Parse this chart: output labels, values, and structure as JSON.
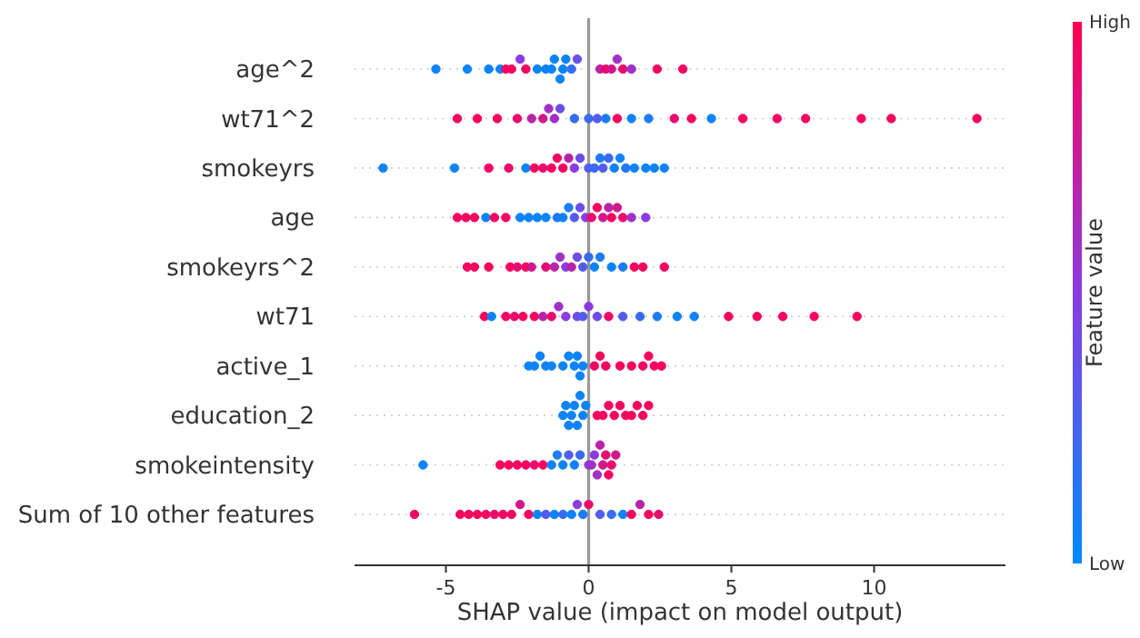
{
  "chart_data": {
    "type": "scatter",
    "orientation": "horizontal",
    "xlabel": "SHAP value (impact on model output)",
    "clabel": "Feature value",
    "xlim": [
      -8.2,
      14.6
    ],
    "xticks": [
      -5,
      0,
      5,
      10
    ],
    "clim": [
      0,
      1
    ],
    "cticks": [
      {
        "value": 0,
        "label": "Low"
      },
      {
        "value": 1,
        "label": "High"
      }
    ],
    "grid": "y",
    "marker": "circle",
    "ref_lines": [
      {
        "axis": "x",
        "value": 0,
        "color": "#999999"
      }
    ],
    "categories": [
      "age^2",
      "wt71^2",
      "smokeyrs",
      "age",
      "smokeyrs^2",
      "wt71",
      "active_1",
      "education_2",
      "smokeintensity",
      "Sum of 10 other features"
    ],
    "series": [
      {
        "values": [
          -5.35,
          -4.6,
          -7.2,
          -4.6,
          -4.25,
          -3.65,
          -2.1,
          -0.9,
          -5.8,
          -6.1
        ],
        "cvalues": [
          0.05,
          0.95,
          0.05,
          0.95,
          0.95,
          0.95,
          0.05,
          0.05,
          0.05,
          0.95
        ],
        "colors": [
          "#0e83f8",
          "#f30660",
          "#0e83f8",
          "#f30660",
          "#f30660",
          "#f30660",
          "#0e83f8",
          "#0e83f8",
          "#0e83f8",
          "#f30660"
        ]
      },
      {
        "values": [
          -4.25,
          -3.9,
          -4.7,
          -4.3,
          -4.0,
          -3.4,
          -1.9,
          -0.8,
          -3.1,
          -4.5
        ],
        "cvalues": [
          0.05,
          0.95,
          0.05,
          0.95,
          0.95,
          0.05,
          0.05,
          0.05,
          0.95,
          0.95
        ],
        "colors": [
          "#0e83f8",
          "#f30660",
          "#0e83f8",
          "#f30660",
          "#f30660",
          "#0e83f8",
          "#0e83f8",
          "#0e83f8",
          "#f30660",
          "#f30660"
        ]
      },
      {
        "values": [
          -3.5,
          -3.2,
          -3.5,
          -4.0,
          -3.5,
          -2.9,
          -1.7,
          -0.7,
          -2.8,
          -4.2
        ],
        "cvalues": [
          0.05,
          0.95,
          0.95,
          0.95,
          0.95,
          0.95,
          0.05,
          0.05,
          0.95,
          0.95
        ],
        "colors": [
          "#0e83f8",
          "#f30660",
          "#f30660",
          "#f30660",
          "#f30660",
          "#f30660",
          "#0e83f8",
          "#0e83f8",
          "#f30660",
          "#f30660"
        ]
      },
      {
        "values": [
          -3.1,
          -2.5,
          -2.8,
          -3.6,
          -2.75,
          -2.6,
          -1.5,
          -0.6,
          -2.5,
          -3.9
        ],
        "cvalues": [
          0.05,
          0.9,
          0.9,
          0.05,
          0.95,
          0.9,
          0.05,
          0.05,
          0.95,
          0.95
        ],
        "colors": [
          "#0e83f8",
          "#e80c6e",
          "#e80c6e",
          "#0e83f8",
          "#f30660",
          "#e80c6e",
          "#0e83f8",
          "#0e83f8",
          "#f30660",
          "#f30660"
        ]
      },
      {
        "values": [
          -2.9,
          -2.0,
          -2.2,
          -3.3,
          -2.5,
          -2.3,
          -1.3,
          -0.5,
          -2.2,
          -3.6
        ],
        "cvalues": [
          0.95,
          0.7,
          0.05,
          0.95,
          0.9,
          0.95,
          0.05,
          0.05,
          0.95,
          0.95
        ],
        "colors": [
          "#f30660",
          "#b924a7",
          "#0e83f8",
          "#f30660",
          "#e80c6e",
          "#f30660",
          "#0e83f8",
          "#0e83f8",
          "#f30660",
          "#f30660"
        ]
      },
      {
        "values": [
          -2.7,
          -1.6,
          -1.9,
          -2.9,
          -2.2,
          -1.9,
          -0.9,
          -0.4,
          -1.9,
          -3.3
        ],
        "cvalues": [
          0.95,
          0.8,
          0.95,
          0.95,
          0.95,
          0.95,
          0.05,
          0.05,
          0.9,
          0.9
        ],
        "colors": [
          "#f30660",
          "#d0188b",
          "#f30660",
          "#f30660",
          "#f30660",
          "#f30660",
          "#0e83f8",
          "#0e83f8",
          "#e80c6e",
          "#e80c6e"
        ]
      },
      {
        "values": [
          -2.4,
          -1.4,
          -1.6,
          -2.4,
          -2.0,
          -1.6,
          -0.7,
          -0.3,
          -1.6,
          -3.0
        ],
        "cvalues": [
          0.5,
          0.6,
          0.9,
          0.05,
          0.8,
          0.7,
          0.05,
          0.05,
          0.95,
          0.95
        ],
        "colors": [
          "#8a3ce0",
          "#a130c4",
          "#e80c6e",
          "#0e83f8",
          "#d0188b",
          "#b924a7",
          "#0e83f8",
          "#0e83f8",
          "#f30660",
          "#f30660"
        ]
      },
      {
        "values": [
          -2.2,
          -1.2,
          -1.3,
          -2.1,
          -1.5,
          -1.3,
          -0.5,
          -0.2,
          -1.3,
          -2.7
        ],
        "cvalues": [
          0.95,
          0.6,
          0.95,
          0.05,
          0.9,
          0.9,
          0.05,
          0.05,
          0.05,
          0.95
        ],
        "colors": [
          "#f30660",
          "#a130c4",
          "#f30660",
          "#0e83f8",
          "#e80c6e",
          "#e80c6e",
          "#0e83f8",
          "#0e83f8",
          "#0e83f8",
          "#f30660"
        ]
      },
      {
        "values": [
          -1.8,
          -1.0,
          -1.1,
          -1.8,
          -1.2,
          -1.05,
          -0.4,
          -0.1,
          -1.1,
          -2.4
        ],
        "cvalues": [
          0.05,
          0.4,
          0.95,
          0.05,
          0.7,
          0.6,
          0.05,
          0.05,
          0.1,
          0.8
        ],
        "colors": [
          "#0e83f8",
          "#6e4ce6",
          "#f30660",
          "#0e83f8",
          "#b924a7",
          "#a130c4",
          "#0e83f8",
          "#0e83f8",
          "#1c7bf6",
          "#d0188b"
        ]
      },
      {
        "values": [
          -1.5,
          -0.5,
          -0.9,
          -1.5,
          -1.0,
          -0.8,
          -0.3,
          0.3,
          -0.9,
          -2.1
        ],
        "cvalues": [
          0.05,
          0.2,
          0.95,
          0.05,
          0.6,
          0.5,
          0.05,
          0.95,
          0.05,
          0.95
        ],
        "colors": [
          "#0e83f8",
          "#376bf0",
          "#f30660",
          "#0e83f8",
          "#a130c4",
          "#8a3ce0",
          "#0e83f8",
          "#f30660",
          "#0e83f8",
          "#f30660"
        ]
      },
      {
        "values": [
          -1.3,
          0.0,
          -0.7,
          -1.1,
          -0.8,
          -0.4,
          -0.2,
          0.5,
          -0.7,
          -1.8
        ],
        "cvalues": [
          0.05,
          0.2,
          0.7,
          0.1,
          0.5,
          0.4,
          0.05,
          0.95,
          0.3,
          0.05
        ],
        "colors": [
          "#0e83f8",
          "#376bf0",
          "#b924a7",
          "#1c7bf6",
          "#8a3ce0",
          "#6e4ce6",
          "#0e83f8",
          "#f30660",
          "#535ceb",
          "#0e83f8"
        ]
      },
      {
        "values": [
          -1.2,
          0.3,
          -0.5,
          -0.9,
          -0.6,
          -0.2,
          0.2,
          0.7,
          -0.5,
          -1.5
        ],
        "cvalues": [
          0.05,
          0.3,
          0.5,
          0.05,
          0.7,
          0.3,
          0.95,
          0.95,
          0.05,
          0.3
        ],
        "colors": [
          "#0e83f8",
          "#535ceb",
          "#8a3ce0",
          "#0e83f8",
          "#b924a7",
          "#535ceb",
          "#f30660",
          "#f30660",
          "#0e83f8",
          "#535ceb"
        ]
      },
      {
        "values": [
          -1.0,
          0.6,
          -0.3,
          -0.7,
          -0.4,
          0.0,
          0.4,
          0.9,
          -0.3,
          -1.2
        ],
        "cvalues": [
          0.05,
          0.1,
          0.4,
          0.1,
          0.4,
          0.5,
          0.95,
          0.95,
          0.2,
          0.05
        ],
        "colors": [
          "#0e83f8",
          "#1c7bf6",
          "#6e4ce6",
          "#1c7bf6",
          "#6e4ce6",
          "#8a3ce0",
          "#f30660",
          "#f30660",
          "#376bf0",
          "#0e83f8"
        ]
      },
      {
        "values": [
          -0.9,
          1.0,
          0.0,
          -0.5,
          -0.2,
          0.3,
          0.6,
          1.1,
          0.0,
          -0.9
        ],
        "cvalues": [
          0.05,
          0.95,
          0.3,
          0.3,
          0.3,
          0.4,
          0.95,
          0.95,
          0.5,
          0.2
        ],
        "colors": [
          "#0e83f8",
          "#f30660",
          "#535ceb",
          "#535ceb",
          "#535ceb",
          "#6e4ce6",
          "#f30660",
          "#f30660",
          "#8a3ce0",
          "#376bf0"
        ]
      },
      {
        "values": [
          -0.8,
          1.5,
          0.2,
          -0.3,
          0.0,
          0.7,
          1.1,
          1.3,
          0.1,
          -0.6
        ],
        "cvalues": [
          0.05,
          0.05,
          0.2,
          0.4,
          0.2,
          0.95,
          0.95,
          0.95,
          0.6,
          0.05
        ],
        "colors": [
          "#0e83f8",
          "#0e83f8",
          "#376bf0",
          "#6e4ce6",
          "#376bf0",
          "#f30660",
          "#f30660",
          "#f30660",
          "#a130c4",
          "#0e83f8"
        ]
      },
      {
        "values": [
          -0.6,
          2.1,
          0.4,
          -0.1,
          0.2,
          1.2,
          1.5,
          1.5,
          0.2,
          -0.4
        ],
        "cvalues": [
          0.2,
          0.1,
          0.1,
          0.5,
          0.05,
          0.3,
          0.95,
          0.95,
          0.5,
          0.5
        ],
        "colors": [
          "#376bf0",
          "#1c7bf6",
          "#1c7bf6",
          "#8a3ce0",
          "#0e83f8",
          "#535ceb",
          "#f30660",
          "#f30660",
          "#8a3ce0",
          "#8a3ce0"
        ]
      },
      {
        "values": [
          -0.4,
          3.0,
          0.5,
          0.1,
          0.4,
          1.8,
          1.9,
          1.7,
          0.3,
          -0.2
        ],
        "cvalues": [
          0.4,
          0.9,
          0.3,
          0.9,
          0.1,
          0.2,
          0.95,
          0.95,
          0.6,
          0.1
        ],
        "colors": [
          "#6e4ce6",
          "#e80c6e",
          "#535ceb",
          "#e80c6e",
          "#1c7bf6",
          "#376bf0",
          "#f30660",
          "#f30660",
          "#a130c4",
          "#1c7bf6"
        ]
      },
      {
        "values": [
          0.4,
          3.6,
          0.7,
          0.3,
          0.8,
          2.4,
          2.1,
          1.9,
          0.4,
          0.0
        ],
        "cvalues": [
          0.7,
          0.95,
          0.2,
          0.95,
          0.05,
          0.1,
          0.95,
          0.95,
          0.7,
          0.9
        ],
        "colors": [
          "#b924a7",
          "#f30660",
          "#376bf0",
          "#f30660",
          "#0e83f8",
          "#1c7bf6",
          "#f30660",
          "#f30660",
          "#b924a7",
          "#e80c6e"
        ]
      },
      {
        "values": [
          0.6,
          4.3,
          0.9,
          0.5,
          1.2,
          3.1,
          2.3,
          2.1,
          0.5,
          0.4
        ],
        "cvalues": [
          0.9,
          0.05,
          0.05,
          0.8,
          0.1,
          0.05,
          0.95,
          0.95,
          0.8,
          0.3
        ],
        "colors": [
          "#e80c6e",
          "#0e83f8",
          "#0e83f8",
          "#d0188b",
          "#1c7bf6",
          "#0e83f8",
          "#f30660",
          "#f30660",
          "#d0188b",
          "#535ceb"
        ]
      },
      {
        "values": [
          0.8,
          5.4,
          1.1,
          0.7,
          1.6,
          3.7,
          2.55,
          null,
          0.6,
          0.8
        ],
        "cvalues": [
          0.8,
          0.95,
          0.05,
          0.7,
          0.95,
          0.05,
          0.95,
          null,
          0.9,
          0.2
        ],
        "colors": [
          "#d0188b",
          "#f30660",
          "#0e83f8",
          "#b924a7",
          "#f30660",
          "#0e83f8",
          "#f30660",
          null,
          "#e80c6e",
          "#376bf0"
        ]
      },
      {
        "values": [
          1.0,
          6.6,
          1.3,
          0.8,
          1.9,
          4.9,
          null,
          null,
          0.7,
          1.2
        ],
        "cvalues": [
          0.6,
          0.95,
          0.1,
          0.95,
          0.95,
          0.95,
          null,
          null,
          0.95,
          0.05
        ],
        "colors": [
          "#a130c4",
          "#f30660",
          "#1c7bf6",
          "#f30660",
          "#f30660",
          "#f30660",
          null,
          null,
          "#f30660",
          "#0e83f8"
        ]
      },
      {
        "values": [
          1.2,
          7.6,
          1.6,
          1.0,
          2.65,
          5.9,
          null,
          null,
          0.8,
          1.5
        ],
        "cvalues": [
          0.9,
          0.95,
          0.05,
          0.8,
          0.95,
          0.95,
          null,
          null,
          0.9,
          0.95
        ],
        "colors": [
          "#e80c6e",
          "#f30660",
          "#0e83f8",
          "#d0188b",
          "#f30660",
          "#f30660",
          null,
          null,
          "#e80c6e",
          "#f30660"
        ]
      },
      {
        "values": [
          1.5,
          9.55,
          2.0,
          1.2,
          null,
          6.8,
          null,
          null,
          0.95,
          1.8
        ],
        "cvalues": [
          0.6,
          0.95,
          0.05,
          0.9,
          null,
          0.95,
          null,
          null,
          0.8,
          0.7
        ],
        "colors": [
          "#a130c4",
          "#f30660",
          "#0e83f8",
          "#e80c6e",
          null,
          "#f30660",
          null,
          null,
          "#d0188b",
          "#b924a7"
        ]
      },
      {
        "values": [
          2.4,
          10.6,
          2.3,
          1.5,
          null,
          7.9,
          null,
          null,
          null,
          2.1
        ],
        "cvalues": [
          0.95,
          0.95,
          0.05,
          0.6,
          null,
          0.95,
          null,
          null,
          null,
          0.95
        ],
        "colors": [
          "#f30660",
          "#f30660",
          "#0e83f8",
          "#a130c4",
          null,
          "#f30660",
          null,
          null,
          null,
          "#f30660"
        ]
      },
      {
        "values": [
          3.3,
          13.6,
          2.65,
          2.0,
          null,
          9.4,
          null,
          null,
          null,
          2.45
        ],
        "cvalues": [
          0.95,
          0.95,
          0.05,
          0.5,
          null,
          0.95,
          null,
          null,
          null,
          0.9
        ],
        "colors": [
          "#f30660",
          "#f30660",
          "#0e83f8",
          "#8a3ce0",
          null,
          "#f30660",
          null,
          null,
          null,
          "#e80c6e"
        ]
      }
    ]
  }
}
